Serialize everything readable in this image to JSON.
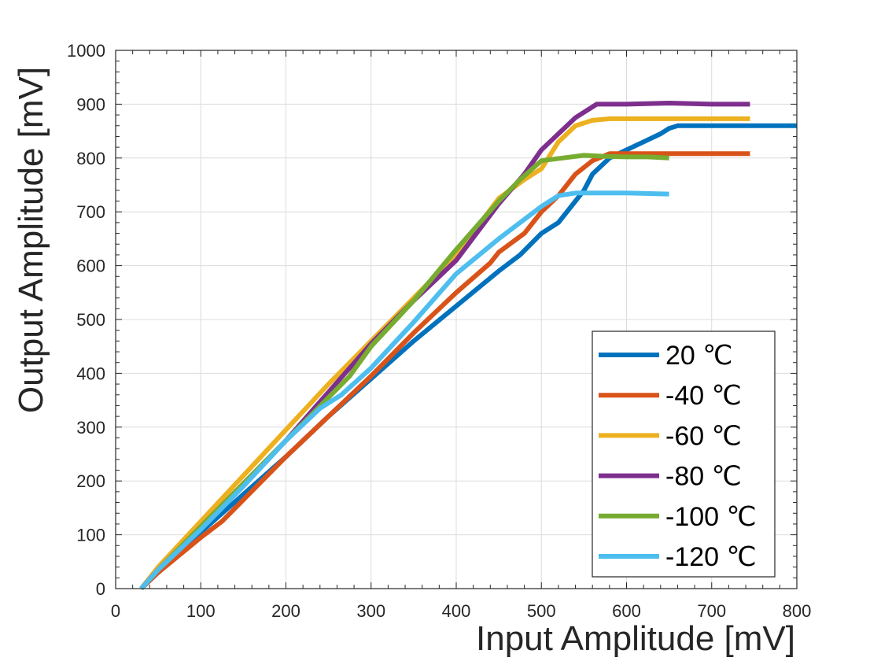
{
  "chart_data": {
    "type": "line",
    "title": "",
    "xlabel": "Input Amplitude [mV]",
    "ylabel": "Output Amplitude [mV]",
    "xlim": [
      0,
      800
    ],
    "ylim": [
      0,
      1000
    ],
    "xticks": [
      0,
      100,
      200,
      300,
      400,
      500,
      600,
      700,
      800
    ],
    "yticks": [
      0,
      100,
      200,
      300,
      400,
      500,
      600,
      700,
      800,
      900,
      1000
    ],
    "grid": true,
    "legend_position": "bottom-right",
    "series": [
      {
        "name": "20 ℃",
        "color": "#0072BD",
        "x": [
          30,
          50,
          100,
          150,
          200,
          250,
          300,
          350,
          400,
          450,
          475,
          500,
          520,
          540,
          550,
          560,
          580,
          600,
          620,
          640,
          650,
          660,
          700,
          750,
          800
        ],
        "y": [
          0,
          30,
          105,
          175,
          245,
          320,
          390,
          460,
          525,
          590,
          620,
          660,
          680,
          720,
          740,
          770,
          800,
          815,
          830,
          845,
          855,
          860,
          860,
          860,
          860
        ]
      },
      {
        "name": "-40 ℃",
        "color": "#D95319",
        "x": [
          30,
          50,
          100,
          125,
          150,
          200,
          250,
          300,
          350,
          400,
          440,
          450,
          480,
          500,
          520,
          540,
          560,
          580,
          600,
          650,
          700,
          745
        ],
        "y": [
          0,
          30,
          95,
          125,
          165,
          245,
          320,
          395,
          475,
          550,
          605,
          625,
          660,
          700,
          730,
          770,
          795,
          808,
          808,
          808,
          808,
          808
        ]
      },
      {
        "name": "-60 ℃",
        "color": "#EDB120",
        "x": [
          30,
          50,
          100,
          150,
          200,
          250,
          300,
          350,
          400,
          450,
          480,
          500,
          520,
          540,
          560,
          580,
          600,
          650,
          700,
          745
        ],
        "y": [
          0,
          40,
          125,
          210,
          295,
          380,
          460,
          540,
          620,
          725,
          760,
          780,
          830,
          860,
          870,
          873,
          873,
          873,
          873,
          873
        ]
      },
      {
        "name": "-80 ℃",
        "color": "#7E2F8E",
        "x": [
          30,
          50,
          100,
          150,
          200,
          250,
          300,
          350,
          400,
          450,
          480,
          500,
          520,
          540,
          560,
          565,
          600,
          650,
          700,
          745
        ],
        "y": [
          0,
          35,
          115,
          195,
          275,
          365,
          455,
          535,
          610,
          715,
          770,
          815,
          845,
          875,
          895,
          900,
          900,
          902,
          900,
          900
        ]
      },
      {
        "name": "-100 ℃",
        "color": "#77AC30",
        "x": [
          30,
          50,
          100,
          150,
          200,
          250,
          275,
          300,
          350,
          400,
          450,
          475,
          500,
          525,
          550,
          575,
          600,
          625,
          650
        ],
        "y": [
          0,
          35,
          115,
          195,
          275,
          355,
          395,
          450,
          535,
          630,
          720,
          760,
          795,
          800,
          805,
          803,
          802,
          802,
          800
        ]
      },
      {
        "name": "-120 ℃",
        "color": "#4DBEEE",
        "x": [
          30,
          50,
          100,
          150,
          200,
          240,
          265,
          300,
          350,
          400,
          450,
          475,
          500,
          520,
          540,
          560,
          600,
          650
        ],
        "y": [
          0,
          35,
          110,
          190,
          275,
          335,
          360,
          410,
          495,
          585,
          650,
          680,
          710,
          730,
          735,
          735,
          735,
          733
        ]
      }
    ]
  }
}
